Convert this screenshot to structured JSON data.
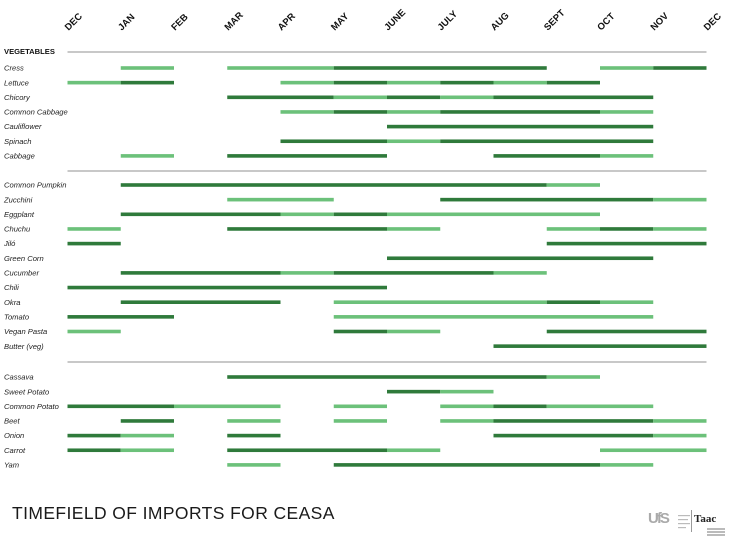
{
  "title": "TIMEFIELD OF IMPORTS FOR CEASA",
  "logos": {
    "left": "UfS",
    "right": "Taac"
  },
  "chart_data": {
    "type": "gantt",
    "months": [
      "DEC",
      "JAN",
      "FEB",
      "MAR",
      "APR",
      "MAY",
      "JUNE",
      "JULY",
      "AUG",
      "SEPT",
      "OCT",
      "NOV",
      "DEC"
    ],
    "colors": {
      "dark": "#2f7a3b",
      "light": "#6cc17a",
      "separator": "#c8c8c8"
    },
    "groups": [
      {
        "label": "VEGETABLES",
        "rows": [
          {
            "label": "Cress",
            "bars": [
              {
                "start": 1,
                "end": 2,
                "shade": "light"
              },
              {
                "start": 3,
                "end": 5,
                "shade": "light"
              },
              {
                "start": 5,
                "end": 9,
                "shade": "dark"
              },
              {
                "start": 10,
                "end": 11,
                "shade": "light"
              },
              {
                "start": 11,
                "end": 12,
                "shade": "dark"
              }
            ]
          },
          {
            "label": "Lettuce",
            "bars": [
              {
                "start": 0,
                "end": 1,
                "shade": "light"
              },
              {
                "start": 1,
                "end": 2,
                "shade": "dark"
              },
              {
                "start": 4,
                "end": 5,
                "shade": "light"
              },
              {
                "start": 5,
                "end": 6,
                "shade": "dark"
              },
              {
                "start": 6,
                "end": 7,
                "shade": "light"
              },
              {
                "start": 7,
                "end": 8,
                "shade": "dark"
              },
              {
                "start": 8,
                "end": 9,
                "shade": "light"
              },
              {
                "start": 9,
                "end": 10,
                "shade": "dark"
              }
            ]
          },
          {
            "label": "Chicory",
            "bars": [
              {
                "start": 3,
                "end": 5,
                "shade": "dark"
              },
              {
                "start": 5,
                "end": 6,
                "shade": "light"
              },
              {
                "start": 6,
                "end": 7,
                "shade": "dark"
              },
              {
                "start": 7,
                "end": 8,
                "shade": "light"
              },
              {
                "start": 8,
                "end": 11,
                "shade": "dark"
              }
            ]
          },
          {
            "label": "Common Cabbage",
            "bars": [
              {
                "start": 4,
                "end": 5,
                "shade": "light"
              },
              {
                "start": 5,
                "end": 6,
                "shade": "dark"
              },
              {
                "start": 6,
                "end": 7,
                "shade": "light"
              },
              {
                "start": 7,
                "end": 10,
                "shade": "dark"
              },
              {
                "start": 10,
                "end": 11,
                "shade": "light"
              }
            ]
          },
          {
            "label": "Cauliflower",
            "bars": [
              {
                "start": 6,
                "end": 11,
                "shade": "dark"
              }
            ]
          },
          {
            "label": "Spinach",
            "bars": [
              {
                "start": 4,
                "end": 6,
                "shade": "dark"
              },
              {
                "start": 6,
                "end": 7,
                "shade": "light"
              },
              {
                "start": 7,
                "end": 11,
                "shade": "dark"
              }
            ]
          },
          {
            "label": "Cabbage",
            "bars": [
              {
                "start": 1,
                "end": 2,
                "shade": "light"
              },
              {
                "start": 3,
                "end": 6,
                "shade": "dark"
              },
              {
                "start": 8,
                "end": 10,
                "shade": "dark"
              },
              {
                "start": 10,
                "end": 11,
                "shade": "light"
              }
            ]
          }
        ]
      },
      {
        "label": "",
        "rows": [
          {
            "label": "Common Pumpkin",
            "bars": [
              {
                "start": 1,
                "end": 9,
                "shade": "dark"
              },
              {
                "start": 9,
                "end": 10,
                "shade": "light"
              }
            ]
          },
          {
            "label": "Zucchini",
            "bars": [
              {
                "start": 3,
                "end": 5,
                "shade": "light"
              },
              {
                "start": 7,
                "end": 11,
                "shade": "dark"
              },
              {
                "start": 11,
                "end": 12,
                "shade": "light"
              }
            ]
          },
          {
            "label": "Eggplant",
            "bars": [
              {
                "start": 1,
                "end": 4,
                "shade": "dark"
              },
              {
                "start": 4,
                "end": 5,
                "shade": "light"
              },
              {
                "start": 5,
                "end": 6,
                "shade": "dark"
              },
              {
                "start": 6,
                "end": 10,
                "shade": "light"
              }
            ]
          },
          {
            "label": "Chuchu",
            "bars": [
              {
                "start": 0,
                "end": 1,
                "shade": "light"
              },
              {
                "start": 3,
                "end": 6,
                "shade": "dark"
              },
              {
                "start": 6,
                "end": 7,
                "shade": "light"
              },
              {
                "start": 9,
                "end": 10,
                "shade": "light"
              },
              {
                "start": 10,
                "end": 11,
                "shade": "dark"
              },
              {
                "start": 11,
                "end": 12,
                "shade": "light"
              }
            ]
          },
          {
            "label": "Jiló",
            "bars": [
              {
                "start": 0,
                "end": 1,
                "shade": "dark"
              },
              {
                "start": 9,
                "end": 12,
                "shade": "dark"
              }
            ]
          },
          {
            "label": "Green Corn",
            "bars": [
              {
                "start": 6,
                "end": 11,
                "shade": "dark"
              }
            ]
          },
          {
            "label": "Cucumber",
            "bars": [
              {
                "start": 1,
                "end": 4,
                "shade": "dark"
              },
              {
                "start": 4,
                "end": 5,
                "shade": "light"
              },
              {
                "start": 5,
                "end": 8,
                "shade": "dark"
              },
              {
                "start": 8,
                "end": 9,
                "shade": "light"
              }
            ]
          },
          {
            "label": "Chili",
            "bars": [
              {
                "start": 0,
                "end": 6,
                "shade": "dark"
              }
            ]
          },
          {
            "label": "Okra",
            "bars": [
              {
                "start": 1,
                "end": 4,
                "shade": "dark"
              },
              {
                "start": 5,
                "end": 9,
                "shade": "light"
              },
              {
                "start": 9,
                "end": 10,
                "shade": "dark"
              },
              {
                "start": 10,
                "end": 11,
                "shade": "light"
              }
            ]
          },
          {
            "label": "Tomato",
            "bars": [
              {
                "start": 0,
                "end": 2,
                "shade": "dark"
              },
              {
                "start": 5,
                "end": 11,
                "shade": "light"
              }
            ]
          },
          {
            "label": "Vegan Pasta",
            "bars": [
              {
                "start": 0,
                "end": 1,
                "shade": "light"
              },
              {
                "start": 5,
                "end": 6,
                "shade": "dark"
              },
              {
                "start": 6,
                "end": 7,
                "shade": "light"
              },
              {
                "start": 9,
                "end": 12,
                "shade": "dark"
              }
            ]
          },
          {
            "label": "Butter (veg)",
            "bars": [
              {
                "start": 8,
                "end": 12,
                "shade": "dark"
              }
            ]
          }
        ]
      },
      {
        "label": "",
        "rows": [
          {
            "label": "Cassava",
            "bars": [
              {
                "start": 3,
                "end": 9,
                "shade": "dark"
              },
              {
                "start": 9,
                "end": 10,
                "shade": "light"
              }
            ]
          },
          {
            "label": "Sweet Potato",
            "bars": [
              {
                "start": 6,
                "end": 7,
                "shade": "dark"
              },
              {
                "start": 7,
                "end": 8,
                "shade": "light"
              }
            ]
          },
          {
            "label": "Common Potato",
            "bars": [
              {
                "start": 0,
                "end": 2,
                "shade": "dark"
              },
              {
                "start": 2,
                "end": 4,
                "shade": "light"
              },
              {
                "start": 5,
                "end": 6,
                "shade": "light"
              },
              {
                "start": 7,
                "end": 8,
                "shade": "light"
              },
              {
                "start": 8,
                "end": 9,
                "shade": "dark"
              },
              {
                "start": 9,
                "end": 11,
                "shade": "light"
              }
            ]
          },
          {
            "label": "Beet",
            "bars": [
              {
                "start": 1,
                "end": 2,
                "shade": "dark"
              },
              {
                "start": 3,
                "end": 4,
                "shade": "light"
              },
              {
                "start": 5,
                "end": 6,
                "shade": "light"
              },
              {
                "start": 7,
                "end": 8,
                "shade": "light"
              },
              {
                "start": 8,
                "end": 11,
                "shade": "dark"
              },
              {
                "start": 11,
                "end": 12,
                "shade": "light"
              }
            ]
          },
          {
            "label": "Onion",
            "bars": [
              {
                "start": 0,
                "end": 1,
                "shade": "dark"
              },
              {
                "start": 1,
                "end": 2,
                "shade": "light"
              },
              {
                "start": 3,
                "end": 4,
                "shade": "dark"
              },
              {
                "start": 8,
                "end": 11,
                "shade": "dark"
              },
              {
                "start": 11,
                "end": 12,
                "shade": "light"
              }
            ]
          },
          {
            "label": "Carrot",
            "bars": [
              {
                "start": 0,
                "end": 1,
                "shade": "dark"
              },
              {
                "start": 1,
                "end": 2,
                "shade": "light"
              },
              {
                "start": 3,
                "end": 6,
                "shade": "dark"
              },
              {
                "start": 6,
                "end": 7,
                "shade": "light"
              },
              {
                "start": 10,
                "end": 12,
                "shade": "light"
              }
            ]
          },
          {
            "label": "Yam",
            "bars": [
              {
                "start": 3,
                "end": 4,
                "shade": "light"
              },
              {
                "start": 5,
                "end": 10,
                "shade": "dark"
              },
              {
                "start": 10,
                "end": 11,
                "shade": "light"
              }
            ]
          }
        ]
      }
    ]
  }
}
